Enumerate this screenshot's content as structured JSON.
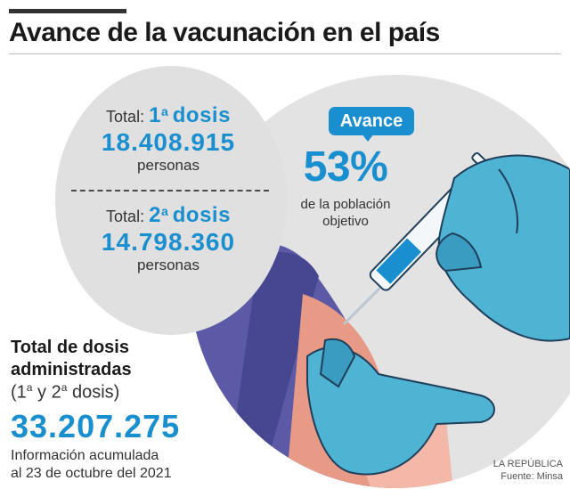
{
  "title": "Avance de la vacunación en el país",
  "dose1": {
    "label": "Total:",
    "ordinal": "1",
    "ordinal_sup": "a",
    "word": "dosis",
    "value": "18.408.915",
    "unit": "personas"
  },
  "dose2": {
    "label": "Total:",
    "ordinal": "2",
    "ordinal_sup": "a",
    "word": "dosis",
    "value": "14.798.360",
    "unit": "personas"
  },
  "progress": {
    "badge": "Avance",
    "percent": "53%",
    "line1": "de la población",
    "line2": "objetivo"
  },
  "total": {
    "title_line1": "Total de dosis",
    "title_line2": "administradas",
    "sub_open": "(1",
    "sub_sup1": "a",
    "sub_mid": " y 2",
    "sub_sup2": "a",
    "sub_close": " dosis)",
    "value": "33.207.275",
    "info_line1": "Información acumulada",
    "info_line2": "al 23 de octubre del 2021"
  },
  "credit": {
    "source": "LA REPÚBLICA",
    "origin": "Fuente: Minsa"
  },
  "colors": {
    "accent_blue": "#1a8fd0",
    "glove": "#4fb3d4",
    "sleeve": "#5c5aa6",
    "skin": "#e79a86",
    "circle_gray": "#e0e0e0"
  },
  "icons": [
    "syringe-icon",
    "gloved-hand-icon"
  ]
}
